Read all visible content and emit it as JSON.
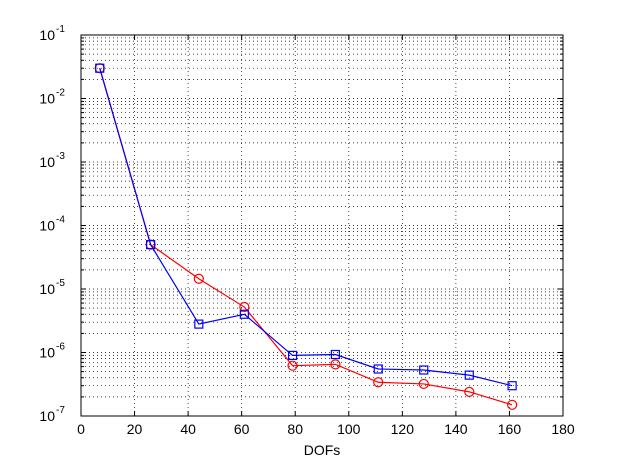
{
  "chart_data": {
    "type": "line",
    "xlabel": "DOFs",
    "ylabel": "",
    "title": "",
    "xlim": [
      0,
      180
    ],
    "ylim": [
      1e-07,
      0.1
    ],
    "yscale": "log",
    "grid": true,
    "x_ticks": [
      "0",
      "20",
      "40",
      "60",
      "80",
      "100",
      "120",
      "140",
      "160",
      "180"
    ],
    "y_ticks": [
      {
        "base": "10",
        "exp": "-7"
      },
      {
        "base": "10",
        "exp": "-6"
      },
      {
        "base": "10",
        "exp": "-5"
      },
      {
        "base": "10",
        "exp": "-4"
      },
      {
        "base": "10",
        "exp": "-3"
      },
      {
        "base": "10",
        "exp": "-2"
      },
      {
        "base": "10",
        "exp": "-1"
      }
    ],
    "series": [
      {
        "marker": "square",
        "color": "#0000ff",
        "x": [
          7,
          26,
          44,
          61,
          79,
          95,
          111,
          128,
          145,
          161
        ],
        "y": [
          0.03,
          5e-05,
          2.8e-06,
          4e-06,
          9e-07,
          9.3e-07,
          5.5e-07,
          5.3e-07,
          4.4e-07,
          3e-07
        ]
      },
      {
        "marker": "circle",
        "color": "#ff0000",
        "x": [
          7,
          26,
          44,
          61,
          79,
          95,
          111,
          128,
          145,
          161
        ],
        "y": [
          0.03,
          5e-05,
          1.45e-05,
          5.2e-06,
          6.2e-07,
          6.5e-07,
          3.4e-07,
          3.2e-07,
          2.4e-07,
          1.5e-07
        ]
      }
    ]
  }
}
